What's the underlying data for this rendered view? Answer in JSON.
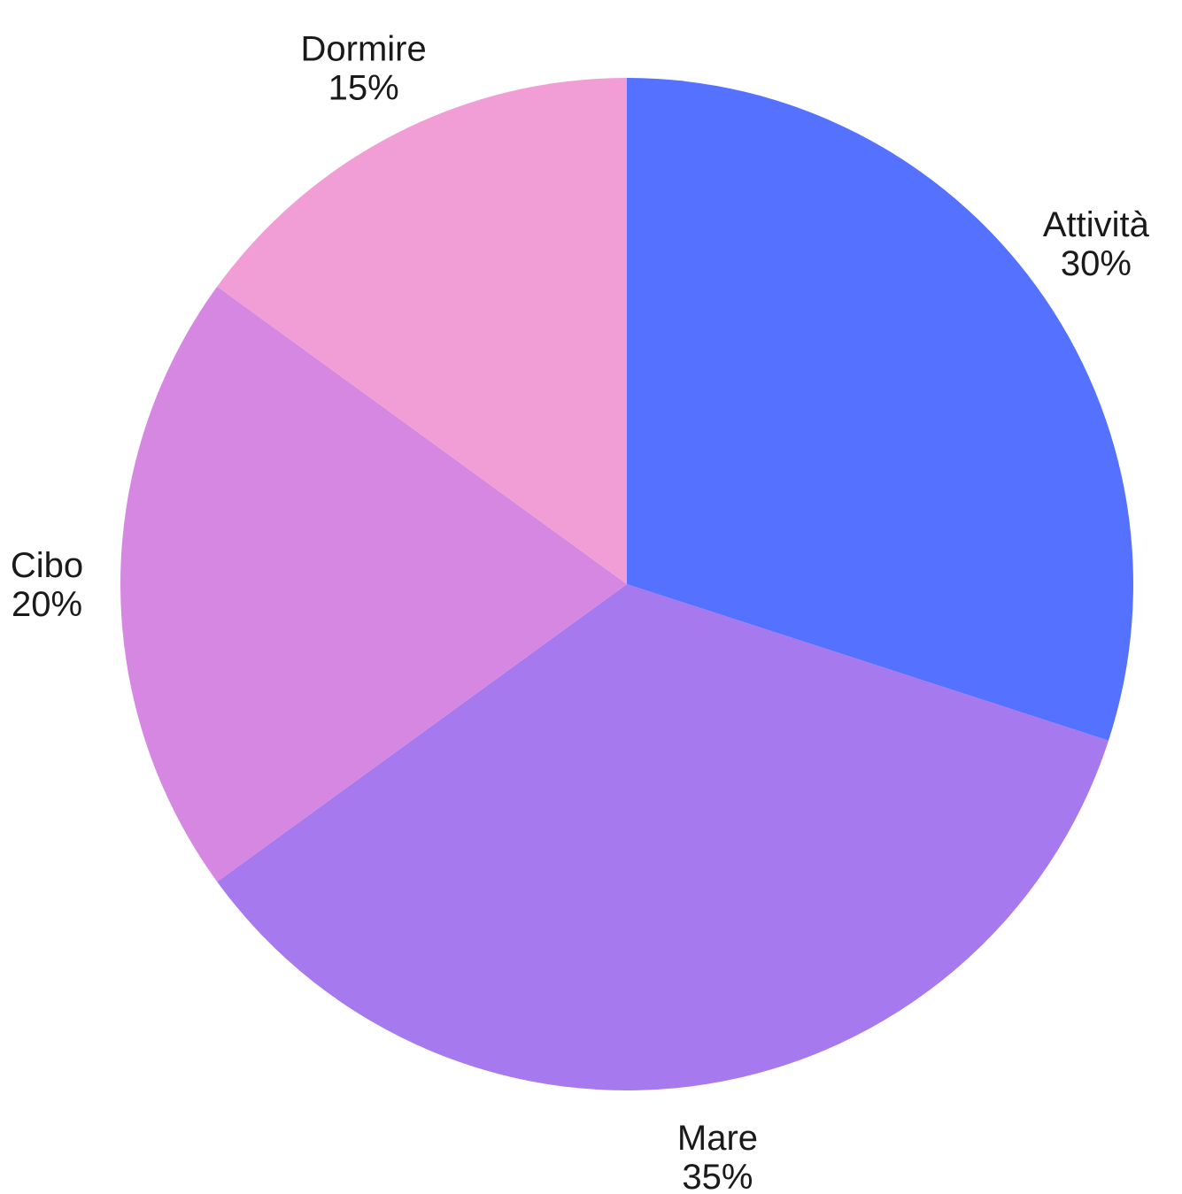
{
  "chart_data": {
    "type": "pie",
    "title": "",
    "start": "12 o'clock",
    "direction": "clockwise",
    "slices": [
      {
        "label": "Attività",
        "value": 30,
        "percent_label": "30%",
        "color": "#5472FF"
      },
      {
        "label": "Mare",
        "value": 35,
        "percent_label": "35%",
        "color": "#A779EF"
      },
      {
        "label": "Cibo",
        "value": 20,
        "percent_label": "20%",
        "color": "#D587E2"
      },
      {
        "label": "Dormire",
        "value": 15,
        "percent_label": "15%",
        "color": "#F09ED5"
      }
    ],
    "legend": "none",
    "labels": "outside"
  }
}
